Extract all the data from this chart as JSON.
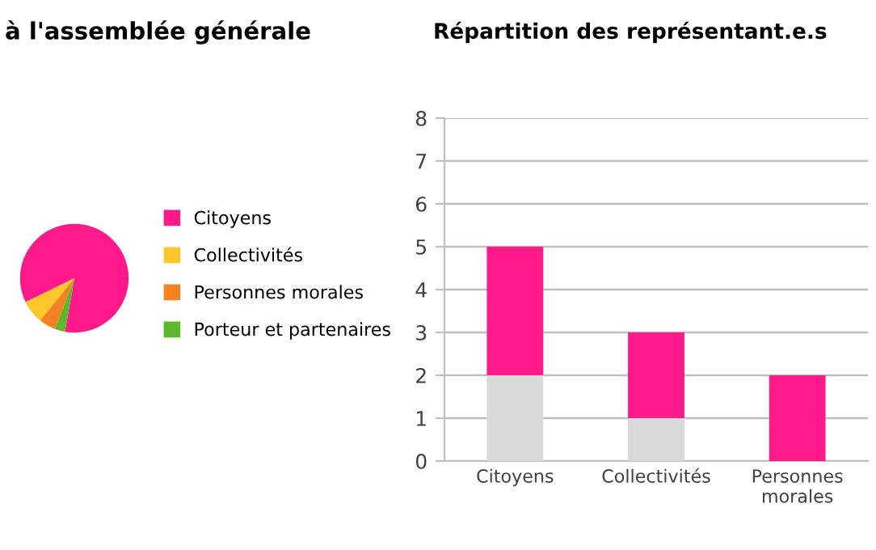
{
  "chart_data": [
    {
      "type": "pie",
      "title": "à l'assemblée générale",
      "categories": [
        "Citoyens",
        "Collectivités",
        "Personnes morales",
        "Porteur et partenaires"
      ],
      "values": [
        85,
        7,
        5,
        3
      ],
      "colors": [
        "#ff1a8c",
        "#ffc72c",
        "#f58220",
        "#5cb82a"
      ],
      "legend": "right"
    },
    {
      "type": "bar",
      "title": "Répartition des représentant.e.s",
      "categories": [
        "Citoyens",
        "Collectivités",
        "Personnes\nmorales"
      ],
      "stacked": true,
      "series": [
        {
          "color": "#d9d9d9",
          "values": [
            2,
            1,
            0
          ]
        },
        {
          "color": "#ff1a8c",
          "values": [
            3,
            2,
            2
          ]
        }
      ],
      "ylim": [
        0,
        8
      ],
      "yticks": [
        0,
        1,
        2,
        3,
        4,
        5,
        6,
        7,
        8
      ],
      "grid": "y",
      "legend": false
    }
  ]
}
